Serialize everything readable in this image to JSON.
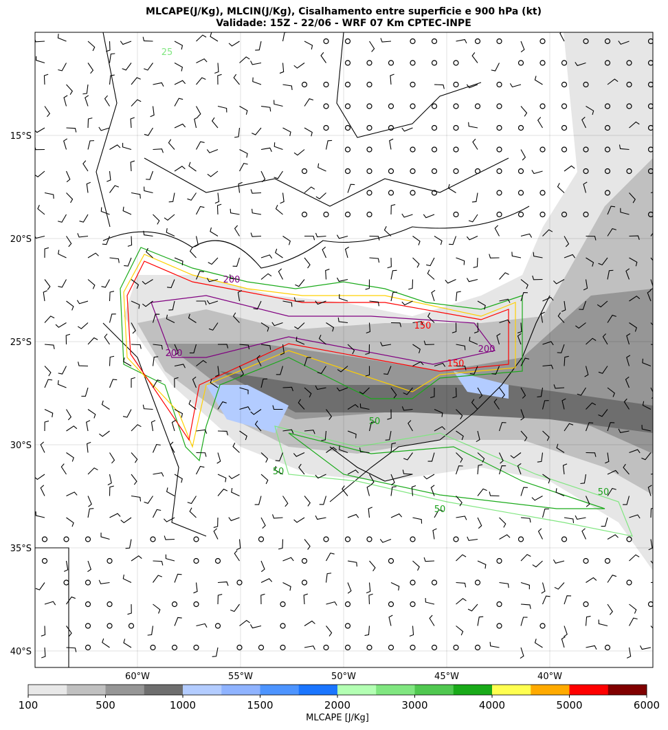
{
  "header": {
    "title": [
      "MLCAPE(J/Kg), MLCIN(J/Kg), Cisalhamento entre superficie e 900 hPa (kt)",
      "Validade: 15Z - 22/06 - WRF 07 Km CPTEC-INPE"
    ]
  },
  "map": {
    "lat_labels": [
      "15°S",
      "20°S",
      "25°S",
      "30°S",
      "35°S",
      "40°S"
    ],
    "lon_labels": [
      "60°W",
      "55°W",
      "50°W",
      "45°W",
      "40°W"
    ],
    "contour_labels": [
      {
        "text": "200",
        "color": "#800080"
      },
      {
        "text": "200",
        "color": "#800080"
      },
      {
        "text": "150",
        "color": "#ff0000"
      },
      {
        "text": "150",
        "color": "#ff0000"
      },
      {
        "text": "200",
        "color": "#800080"
      },
      {
        "text": "50",
        "color": "#19a019"
      },
      {
        "text": "50",
        "color": "#19a019"
      },
      {
        "text": "50",
        "color": "#19a019"
      },
      {
        "text": "25",
        "color": "#80e680"
      },
      {
        "text": "50",
        "color": "#19a019"
      }
    ]
  },
  "colorbar": {
    "label": "MLCAPE [J/Kg]",
    "colors": [
      "#e8e8e8",
      "#c0c0c0",
      "#969696",
      "#6e6e6e",
      "#b3ccff",
      "#8fb3ff",
      "#4d94ff",
      "#1a75ff",
      "#b3ffb3",
      "#80e680",
      "#50c850",
      "#19aa19",
      "#ffff50",
      "#ffaa00",
      "#ff0000",
      "#800000"
    ],
    "ticks": [
      100,
      500,
      1000,
      1500,
      2000,
      3000,
      4000,
      5000,
      6000
    ]
  }
}
